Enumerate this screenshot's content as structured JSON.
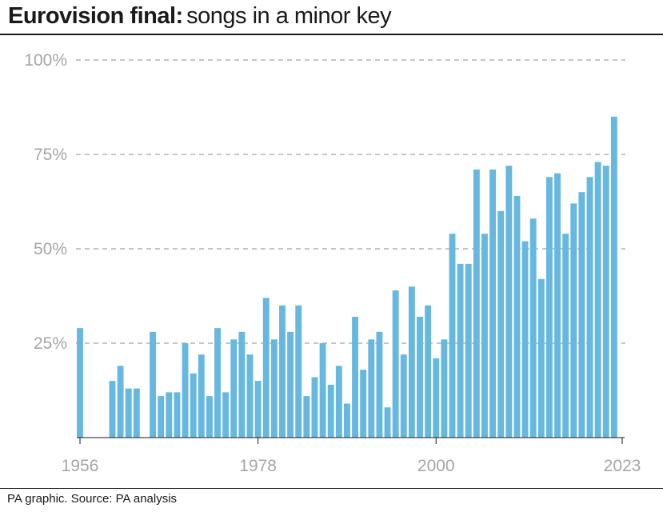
{
  "header": {
    "title_bold": "Eurovision final:",
    "title_rest": "songs in a minor key"
  },
  "footer": {
    "source": "PA graphic. Source: PA analysis"
  },
  "colors": {
    "bar": "#66b8e0",
    "grid": "#8c8c8c",
    "tick_text": "#a6a6a6"
  },
  "chart_data": {
    "type": "bar",
    "x_start": 1956,
    "x_end": 2023,
    "x_ticks": [
      1956,
      1978,
      2000,
      2023
    ],
    "y_ticks": [
      25,
      50,
      75,
      100
    ],
    "y_tick_labels": [
      "25%",
      "50%",
      "75%",
      "100%"
    ],
    "ylim": [
      0,
      100
    ],
    "grid": "horizontal dashed",
    "series": [
      {
        "unit": "%",
        "values": [
          29,
          0,
          0,
          0,
          15,
          19,
          13,
          13,
          0,
          28,
          11,
          12,
          12,
          25,
          17,
          22,
          11,
          29,
          12,
          26,
          28,
          22,
          15,
          37,
          26,
          35,
          28,
          35,
          11,
          16,
          25,
          14,
          19,
          9,
          32,
          18,
          26,
          28,
          8,
          39,
          22,
          40,
          32,
          35,
          21,
          26,
          54,
          46,
          46,
          71,
          54,
          71,
          60,
          72,
          64,
          52,
          58,
          42,
          69,
          70,
          54,
          62,
          65,
          69,
          73,
          72,
          85
        ]
      }
    ]
  }
}
